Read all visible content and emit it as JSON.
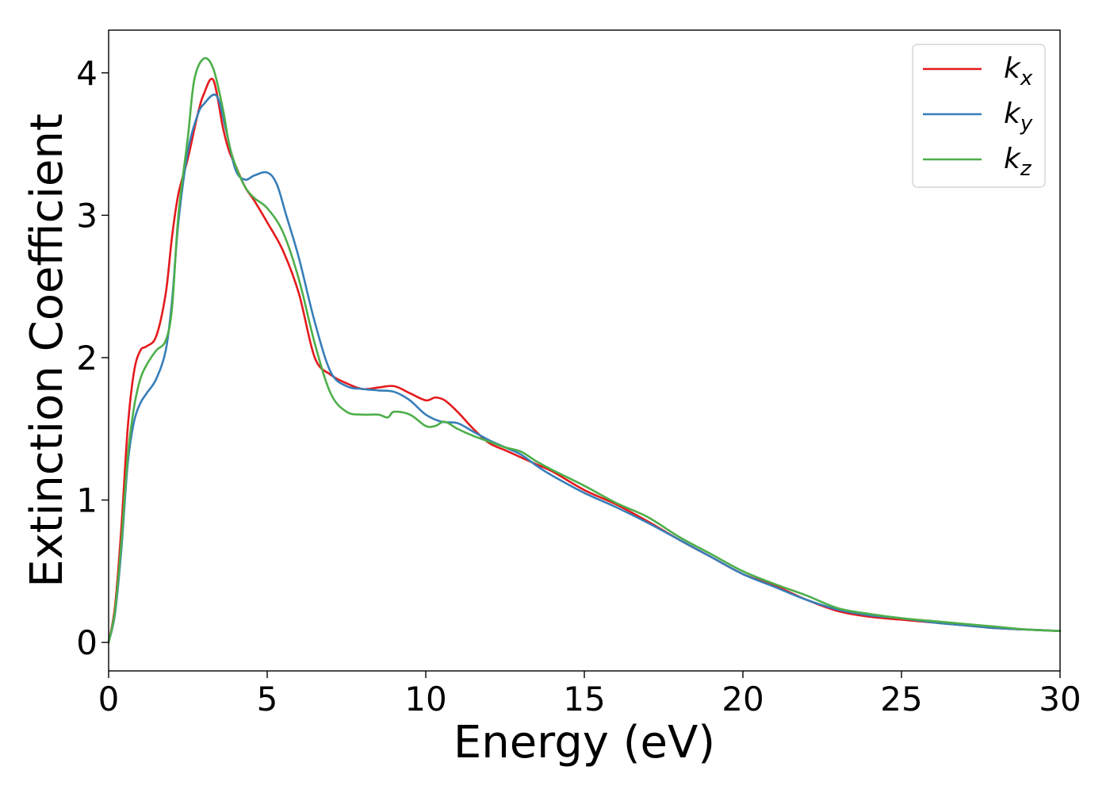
{
  "chart_data": {
    "type": "line",
    "title": "",
    "xlabel": "Energy (eV)",
    "ylabel": "Extinction Coefficient",
    "xlim": [
      0,
      30
    ],
    "ylim": [
      -0.2,
      4.3
    ],
    "xticks": [
      0,
      5,
      10,
      15,
      20,
      25,
      30
    ],
    "yticks": [
      0,
      1,
      2,
      3,
      4
    ],
    "grid": false,
    "legend_position": "top-right",
    "series": [
      {
        "name": "k",
        "subscript": "x",
        "color": "#e41a1c",
        "x": [
          0,
          0.2,
          0.4,
          0.6,
          0.8,
          1.0,
          1.2,
          1.5,
          1.8,
          2.0,
          2.2,
          2.5,
          2.8,
          3.0,
          3.3,
          3.6,
          3.8,
          4.0,
          4.3,
          4.6,
          5.0,
          5.5,
          6.0,
          6.5,
          7.0,
          7.5,
          8.0,
          8.5,
          9.0,
          9.5,
          10.0,
          10.3,
          10.6,
          11.0,
          11.5,
          12.0,
          12.5,
          13.0,
          13.5,
          14.0,
          15.0,
          16.0,
          17.0,
          18.0,
          19.0,
          20.0,
          21.0,
          22.0,
          23.0,
          24.0,
          25.0,
          26.0,
          27.0,
          28.0,
          29.0,
          30.0
        ],
        "y": [
          0.0,
          0.25,
          0.8,
          1.5,
          1.9,
          2.05,
          2.08,
          2.15,
          2.45,
          2.85,
          3.15,
          3.4,
          3.7,
          3.85,
          3.95,
          3.62,
          3.45,
          3.35,
          3.2,
          3.1,
          2.95,
          2.75,
          2.45,
          2.0,
          1.88,
          1.82,
          1.78,
          1.79,
          1.8,
          1.75,
          1.7,
          1.72,
          1.7,
          1.62,
          1.5,
          1.4,
          1.35,
          1.3,
          1.25,
          1.2,
          1.07,
          0.97,
          0.85,
          0.72,
          0.6,
          0.48,
          0.4,
          0.3,
          0.22,
          0.18,
          0.16,
          0.14,
          0.12,
          0.1,
          0.09,
          0.08
        ]
      },
      {
        "name": "k",
        "subscript": "y",
        "color": "#377eb8",
        "x": [
          0,
          0.2,
          0.4,
          0.6,
          0.8,
          1.0,
          1.2,
          1.5,
          1.8,
          2.0,
          2.2,
          2.5,
          2.8,
          3.0,
          3.4,
          3.7,
          4.0,
          4.3,
          4.6,
          5.0,
          5.3,
          5.6,
          6.0,
          6.5,
          7.0,
          7.5,
          8.0,
          8.5,
          9.0,
          9.5,
          10.0,
          10.5,
          11.0,
          11.5,
          12.0,
          12.5,
          13.0,
          13.5,
          14.0,
          15.0,
          16.0,
          17.0,
          18.0,
          19.0,
          20.0,
          21.0,
          22.0,
          23.0,
          24.0,
          25.0,
          26.0,
          27.0,
          28.0,
          29.0,
          30.0
        ],
        "y": [
          0.0,
          0.2,
          0.65,
          1.25,
          1.55,
          1.68,
          1.75,
          1.85,
          2.05,
          2.4,
          2.95,
          3.45,
          3.7,
          3.78,
          3.84,
          3.6,
          3.32,
          3.25,
          3.28,
          3.3,
          3.22,
          3.0,
          2.7,
          2.25,
          1.9,
          1.8,
          1.78,
          1.77,
          1.76,
          1.7,
          1.6,
          1.55,
          1.54,
          1.48,
          1.42,
          1.37,
          1.32,
          1.24,
          1.17,
          1.05,
          0.95,
          0.84,
          0.72,
          0.6,
          0.48,
          0.39,
          0.3,
          0.23,
          0.19,
          0.17,
          0.14,
          0.12,
          0.1,
          0.09,
          0.08
        ]
      },
      {
        "name": "k",
        "subscript": "z",
        "color": "#4daf4a",
        "x": [
          0,
          0.2,
          0.4,
          0.6,
          0.8,
          1.0,
          1.2,
          1.5,
          1.8,
          2.0,
          2.2,
          2.5,
          2.7,
          3.0,
          3.3,
          3.6,
          3.8,
          4.0,
          4.3,
          4.6,
          5.0,
          5.5,
          6.0,
          6.5,
          7.0,
          7.5,
          8.0,
          8.5,
          8.8,
          9.0,
          9.5,
          10.0,
          10.3,
          10.6,
          11.0,
          11.5,
          12.0,
          12.5,
          13.0,
          13.5,
          14.0,
          15.0,
          16.0,
          17.0,
          18.0,
          19.0,
          20.0,
          21.0,
          22.0,
          23.0,
          24.0,
          25.0,
          26.0,
          27.0,
          28.0,
          29.0,
          30.0
        ],
        "y": [
          0.0,
          0.22,
          0.7,
          1.3,
          1.65,
          1.85,
          1.95,
          2.05,
          2.12,
          2.35,
          3.0,
          3.55,
          3.95,
          4.1,
          4.03,
          3.75,
          3.5,
          3.35,
          3.2,
          3.12,
          3.05,
          2.88,
          2.55,
          2.1,
          1.75,
          1.62,
          1.6,
          1.6,
          1.58,
          1.62,
          1.6,
          1.52,
          1.52,
          1.55,
          1.5,
          1.45,
          1.41,
          1.37,
          1.34,
          1.27,
          1.21,
          1.1,
          0.98,
          0.88,
          0.74,
          0.62,
          0.5,
          0.41,
          0.33,
          0.24,
          0.2,
          0.17,
          0.15,
          0.13,
          0.11,
          0.09,
          0.08
        ]
      }
    ]
  }
}
